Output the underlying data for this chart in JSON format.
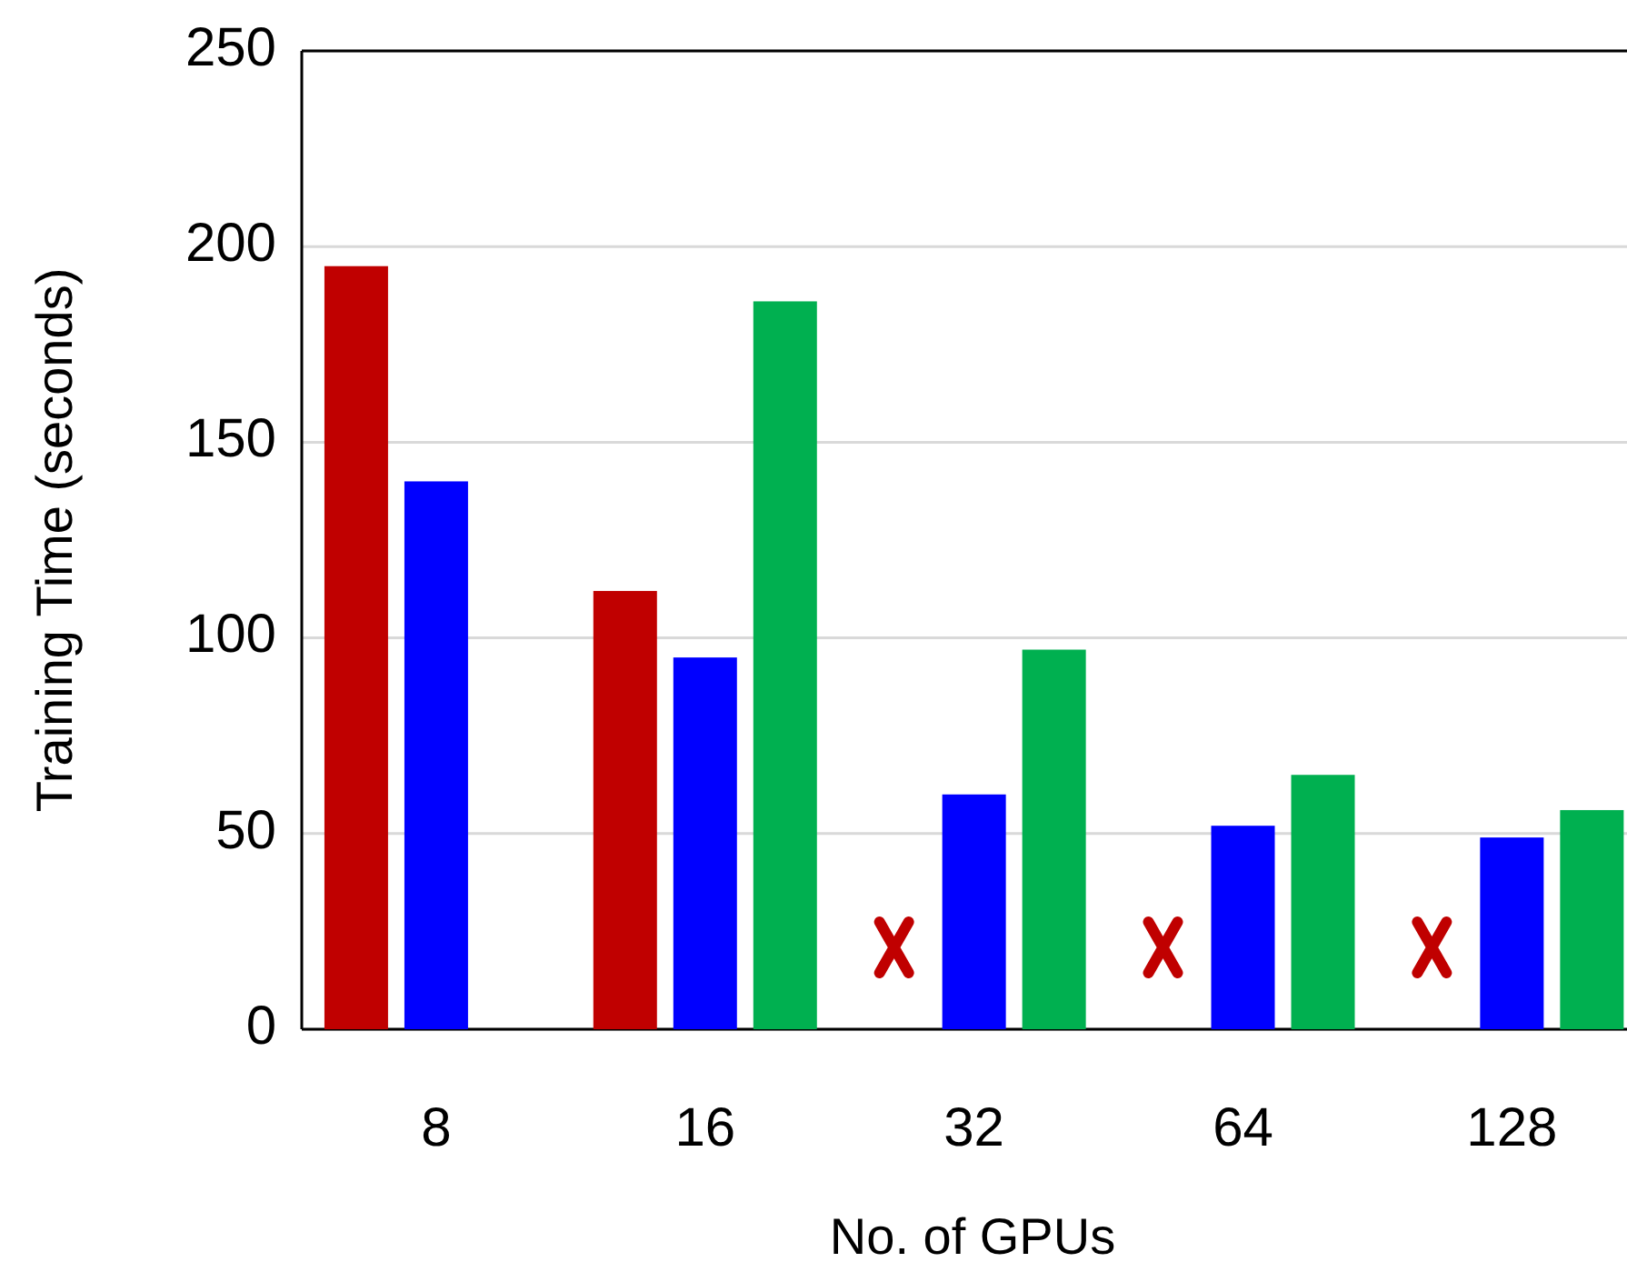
{
  "chart_data": {
    "type": "bar",
    "xlabel": "No. of GPUs",
    "ylabel": "Training Time (seconds)",
    "categories": [
      "8",
      "16",
      "32",
      "64",
      "128"
    ],
    "series": [
      {
        "color": "#c00000",
        "values": [
          195,
          112,
          null,
          null,
          null
        ]
      },
      {
        "color": "#0000ff",
        "values": [
          140,
          95,
          60,
          52,
          49
        ]
      },
      {
        "color": "#00b050",
        "values": [
          null,
          186,
          97,
          65,
          56
        ]
      }
    ],
    "ylim": [
      0,
      250
    ],
    "yticks": [
      0,
      50,
      100,
      150,
      200,
      250
    ],
    "grid": "y"
  }
}
